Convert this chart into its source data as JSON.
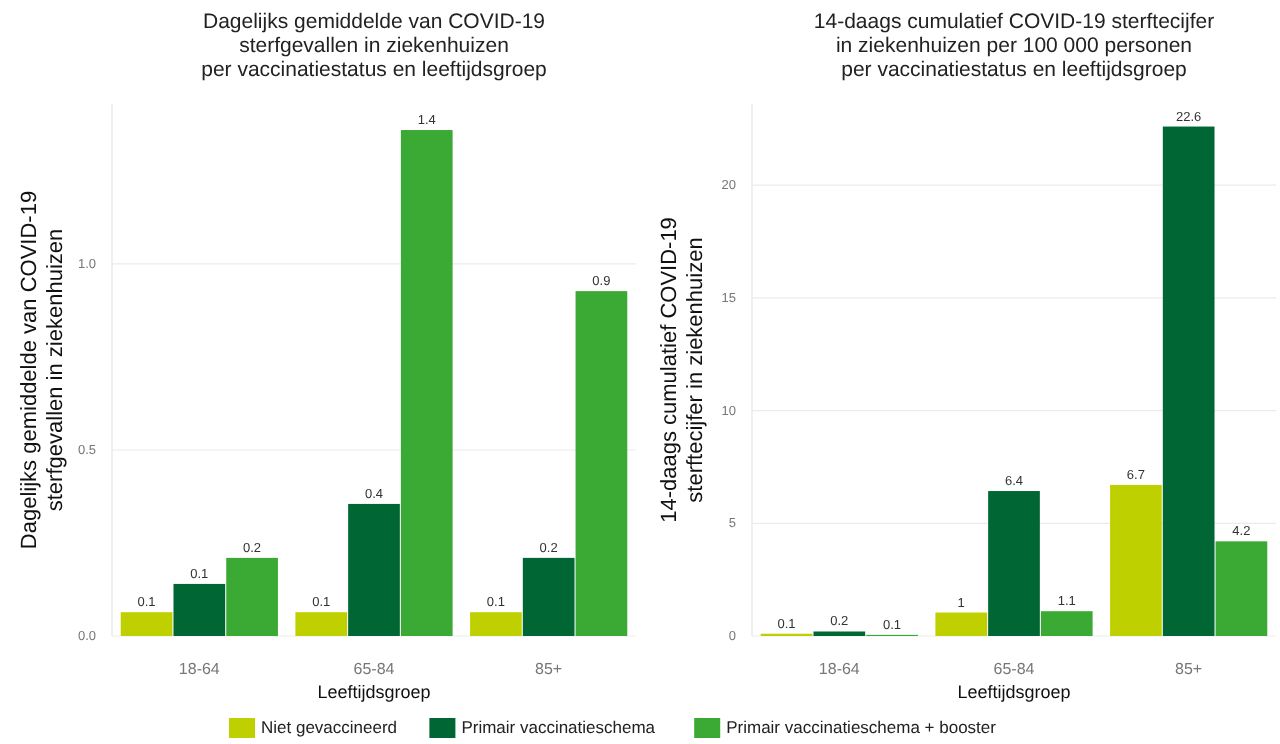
{
  "chart_data": [
    {
      "type": "bar",
      "title": "Dagelijks gemiddelde van COVID-19\nsterfgevallen in ziekenhuizen\nper vaccinatiestatus en leeftijdsgroep",
      "xlabel": "Leeftijdsgroep",
      "ylabel": "Dagelijks gemiddelde van COVID-19\nsterfgevallen in ziekenhuizen",
      "categories": [
        "18-64",
        "65-84",
        "85+"
      ],
      "series": [
        {
          "name": "Niet gevaccineerd",
          "color": "#bfd000",
          "values": [
            0.064,
            0.064,
            0.064
          ],
          "value_labels": [
            "0.1",
            "0.1",
            "0.1"
          ]
        },
        {
          "name": "Primair vaccinatieschema",
          "color": "#006633",
          "values": [
            0.14,
            0.355,
            0.21
          ],
          "value_labels": [
            "0.1",
            "0.4",
            "0.2"
          ]
        },
        {
          "name": "Primair vaccinatieschema + booster",
          "color": "#3aaa35",
          "values": [
            0.21,
            1.36,
            0.927
          ],
          "value_labels": [
            "0.2",
            "1.4",
            "0.9"
          ]
        }
      ],
      "ylim": [
        0,
        1.43
      ],
      "yticks": [
        {
          "value": 0,
          "label": "0.0"
        },
        {
          "value": 0.5,
          "label": "0.5"
        },
        {
          "value": 1,
          "label": "1.0"
        }
      ],
      "grid": "y",
      "legend": "bottom"
    },
    {
      "type": "bar",
      "title": "14-daags cumulatief COVID-19 sterftecijfer\nin ziekenhuizen per 100 000 personen\nper vaccinatiestatus en leeftijdsgroep",
      "xlabel": "Leeftijdsgroep",
      "ylabel": "14-daags cumulatief COVID-19\nsterftecijfer in ziekenhuizen",
      "categories": [
        "18-64",
        "65-84",
        "85+"
      ],
      "series": [
        {
          "name": "Niet gevaccineerd",
          "color": "#bfd000",
          "values": [
            0.1,
            1.04,
            6.7
          ],
          "value_labels": [
            "0.1",
            "1",
            "6.7"
          ]
        },
        {
          "name": "Primair vaccinatieschema",
          "color": "#006633",
          "values": [
            0.2,
            6.43,
            22.6
          ],
          "value_labels": [
            "0.2",
            "6.4",
            "22.6"
          ]
        },
        {
          "name": "Primair vaccinatieschema + booster",
          "color": "#3aaa35",
          "values": [
            0.05,
            1.1,
            4.2
          ],
          "value_labels": [
            "0.1",
            "1.1",
            "4.2"
          ]
        }
      ],
      "ylim": [
        0,
        23.6
      ],
      "yticks": [
        0,
        5,
        10,
        15,
        20
      ],
      "grid": "y",
      "legend": "bottom"
    }
  ]
}
